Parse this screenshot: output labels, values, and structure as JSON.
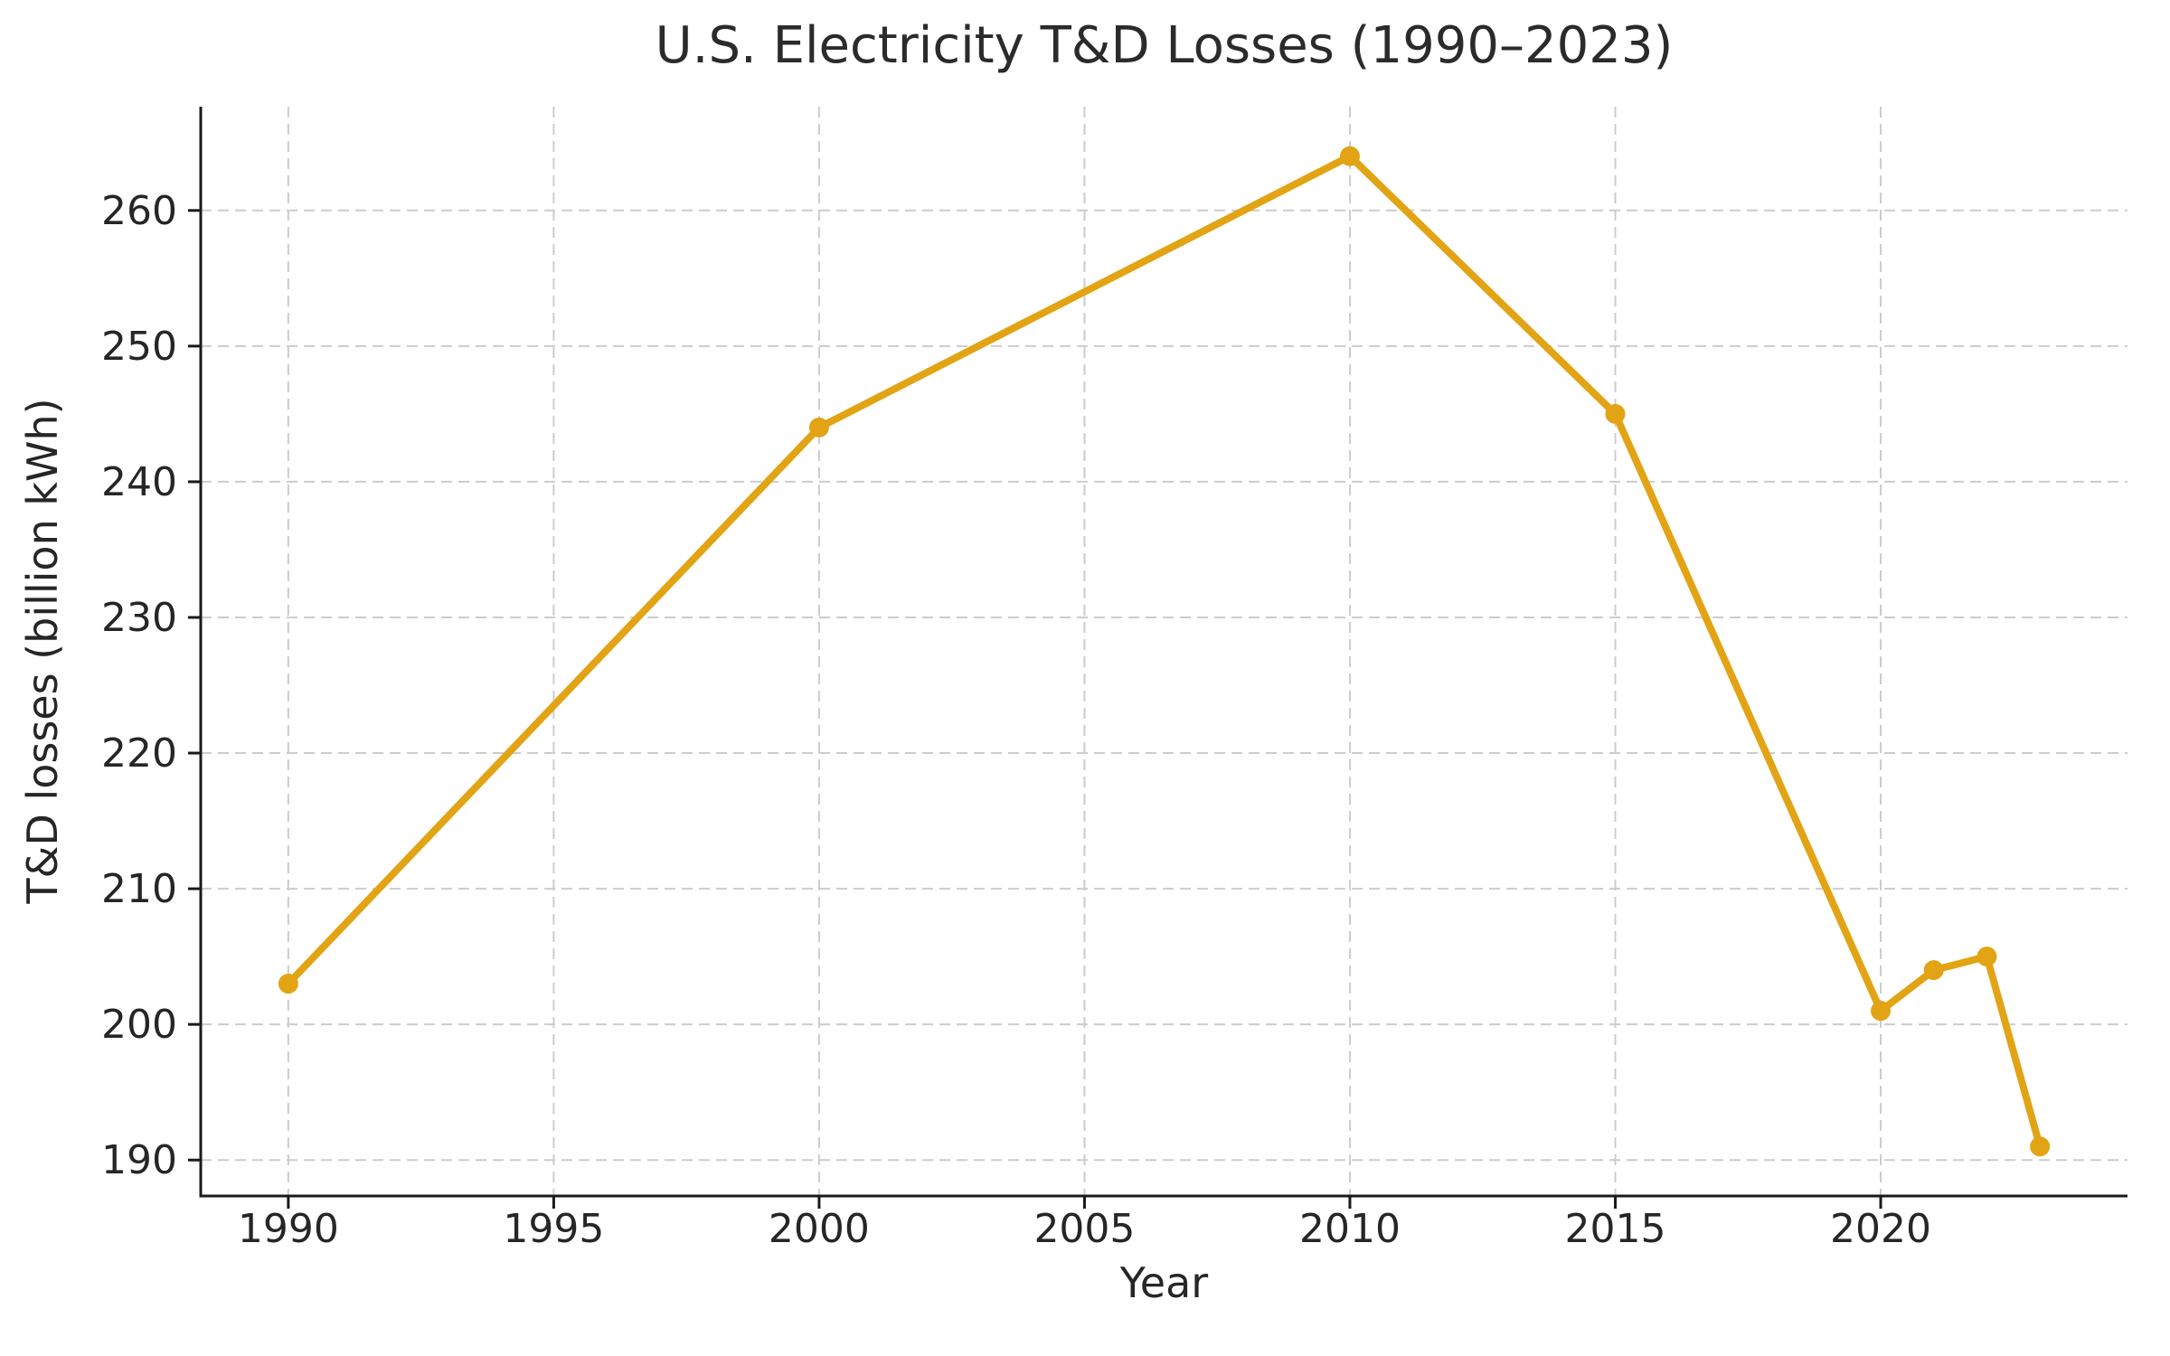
{
  "chart_data": {
    "type": "line",
    "title": "U.S. Electricity T&D Losses (1990–2023)",
    "xlabel": "Year",
    "ylabel": "T&D losses (billion kWh)",
    "series": [
      {
        "name": "T&D losses",
        "x": [
          1990,
          2000,
          2010,
          2015,
          2020,
          2021,
          2022,
          2023
        ],
        "y": [
          203,
          244,
          264,
          245,
          201,
          204,
          205,
          191
        ]
      }
    ],
    "xticks": [
      1990,
      1995,
      2000,
      2005,
      2010,
      2015,
      2020
    ],
    "yticks": [
      190,
      200,
      210,
      220,
      230,
      240,
      250,
      260
    ],
    "xlim": [
      1988.35,
      2024.65
    ],
    "ylim": [
      187.35,
      267.65
    ],
    "grid": true,
    "grid_style": "dashed",
    "legend_position": "none",
    "colors": {
      "line": "#E2A414",
      "grid": "#CCCCCC",
      "spine": "#1A1A1A",
      "text": "#262626",
      "background": "#FFFFFF"
    },
    "marker": "circle"
  }
}
